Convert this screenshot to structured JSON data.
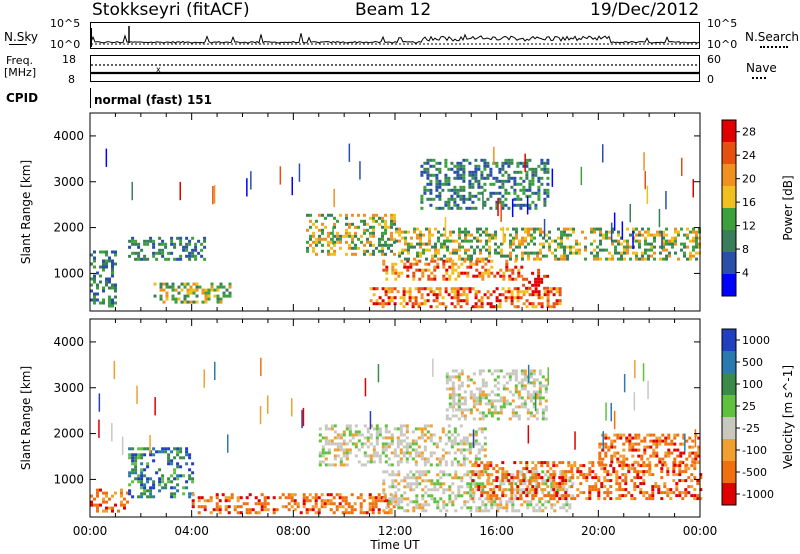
{
  "header": {
    "radar": "Stokkseyri (fitACF)",
    "beam": "Beam 12",
    "date": "19/Dec/2012"
  },
  "strips": {
    "nsky_label": "N.Sky",
    "nsky_ticks": [
      "10^5",
      "10^0"
    ],
    "nsearch_label": "N.Search",
    "nsearch_ticks": [
      "10^5",
      "10^0"
    ],
    "freq_label_1": "Freq.",
    "freq_label_2": "[MHz]",
    "freq_ticks": [
      "18",
      "8"
    ],
    "nave_label": "Nave",
    "nave_ticks": [
      "60",
      "0"
    ],
    "cpid_label": "CPID",
    "cpid_value": "normal (fast) 151"
  },
  "chart_data": [
    {
      "type": "heatmap",
      "title": "",
      "ylabel": "Slant Range [km]",
      "yticks": [
        "1000",
        "2000",
        "3000",
        "4000"
      ],
      "ylim": [
        180,
        4500
      ],
      "xlim": [
        0,
        24
      ],
      "colorbar": {
        "label": "Power [dB]",
        "ticks": [
          "4",
          "8",
          "12",
          "16",
          "20",
          "24",
          "28"
        ],
        "range": [
          0,
          30
        ],
        "colors": [
          "#0000ff",
          "#2a4fa8",
          "#3a7d5a",
          "#3ca03c",
          "#f0c020",
          "#f09020",
          "#e85010",
          "#e00000"
        ]
      },
      "echo_bands": [
        {
          "t0": 0.0,
          "t1": 1.0,
          "r0": 300,
          "r1": 1500,
          "level": "low"
        },
        {
          "t0": 1.5,
          "t1": 4.5,
          "r0": 1300,
          "r1": 1800,
          "level": "low"
        },
        {
          "t0": 2.5,
          "t1": 5.5,
          "r0": 400,
          "r1": 800,
          "level": "mid"
        },
        {
          "t0": 8.5,
          "t1": 12.0,
          "r0": 1400,
          "r1": 2300,
          "level": "mid"
        },
        {
          "t0": 11.0,
          "t1": 18.5,
          "r0": 300,
          "r1": 700,
          "level": "high"
        },
        {
          "t0": 11.5,
          "t1": 17.0,
          "r0": 900,
          "r1": 1300,
          "level": "high"
        },
        {
          "t0": 12.0,
          "t1": 24.0,
          "r0": 1300,
          "r1": 2000,
          "level": "mid"
        },
        {
          "t0": 13.0,
          "t1": 18.0,
          "r0": 2400,
          "r1": 3500,
          "level": "low"
        },
        {
          "t0": 17.0,
          "t1": 18.0,
          "r0": 700,
          "r1": 1100,
          "level": "peak"
        }
      ]
    },
    {
      "type": "heatmap",
      "title": "",
      "xlabel": "Time UT",
      "ylabel": "Slant Range [km]",
      "xticks": [
        "00:00",
        "04:00",
        "08:00",
        "12:00",
        "16:00",
        "20:00",
        "00:00"
      ],
      "yticks": [
        "1000",
        "2000",
        "3000",
        "4000"
      ],
      "ylim": [
        180,
        4500
      ],
      "xlim": [
        0,
        24
      ],
      "colorbar": {
        "label": "Velocity [m s^-1]",
        "ticks": [
          "1000",
          "500",
          "100",
          "25",
          "-25",
          "-100",
          "-500",
          "-1000"
        ],
        "range": [
          -1000,
          1000
        ],
        "colors": [
          "#2040c0",
          "#2a7ab0",
          "#3a8a4a",
          "#60c040",
          "#c8c8c0",
          "#f0a030",
          "#f07010",
          "#e00000"
        ]
      },
      "echo_bands": [
        {
          "t0": 0.0,
          "t1": 1.5,
          "r0": 300,
          "r1": 800,
          "level": "neg"
        },
        {
          "t0": 1.5,
          "t1": 4.0,
          "r0": 600,
          "r1": 1700,
          "level": "pos"
        },
        {
          "t0": 4.0,
          "t1": 12.0,
          "r0": 300,
          "r1": 700,
          "level": "neg"
        },
        {
          "t0": 9.0,
          "t1": 15.5,
          "r0": 1300,
          "r1": 2200,
          "level": "zero"
        },
        {
          "t0": 11.5,
          "t1": 19.0,
          "r0": 300,
          "r1": 1200,
          "level": "zero"
        },
        {
          "t0": 15.0,
          "t1": 24.0,
          "r0": 600,
          "r1": 1400,
          "level": "neg"
        },
        {
          "t0": 20.0,
          "t1": 24.0,
          "r0": 1300,
          "r1": 2000,
          "level": "neg"
        },
        {
          "t0": 14.0,
          "t1": 18.0,
          "r0": 2300,
          "r1": 3400,
          "level": "zero"
        }
      ]
    }
  ]
}
